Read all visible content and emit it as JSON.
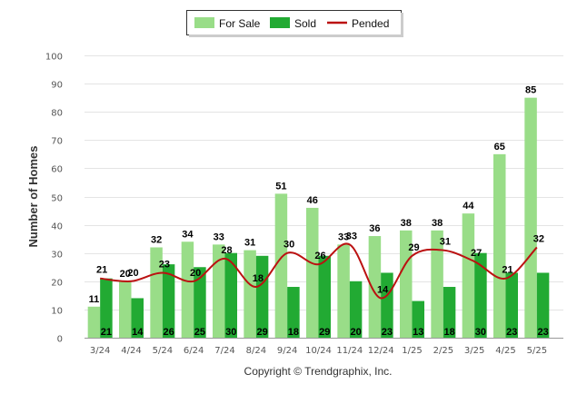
{
  "chart_data": {
    "type": "bar",
    "categories": [
      "3/24",
      "4/24",
      "5/24",
      "6/24",
      "7/24",
      "8/24",
      "9/24",
      "10/24",
      "11/24",
      "12/24",
      "1/25",
      "2/25",
      "3/25",
      "4/25",
      "5/25"
    ],
    "series": [
      {
        "name": "For Sale",
        "type": "bar",
        "color": "#99dd88",
        "values": [
          11,
          20,
          32,
          34,
          33,
          31,
          51,
          46,
          33,
          36,
          38,
          38,
          44,
          65,
          85
        ]
      },
      {
        "name": "Sold",
        "type": "bar",
        "color": "#22aa33",
        "values": [
          21,
          14,
          26,
          25,
          30,
          29,
          18,
          29,
          20,
          23,
          13,
          18,
          30,
          23,
          23
        ]
      },
      {
        "name": "Pended",
        "type": "line",
        "color": "#bb1111",
        "values": [
          21,
          20,
          23,
          20,
          28,
          18,
          30,
          26,
          33,
          14,
          29,
          31,
          27,
          21,
          32
        ]
      }
    ],
    "ylabel": "Number of Homes",
    "xlabel": "",
    "ylim": [
      0,
      100
    ],
    "yticks": [
      0,
      10,
      20,
      30,
      40,
      50,
      60,
      70,
      80,
      90,
      100
    ],
    "grid": true,
    "legend_position": "top-center",
    "credit": "Copyright © Trendgraphix, Inc."
  }
}
